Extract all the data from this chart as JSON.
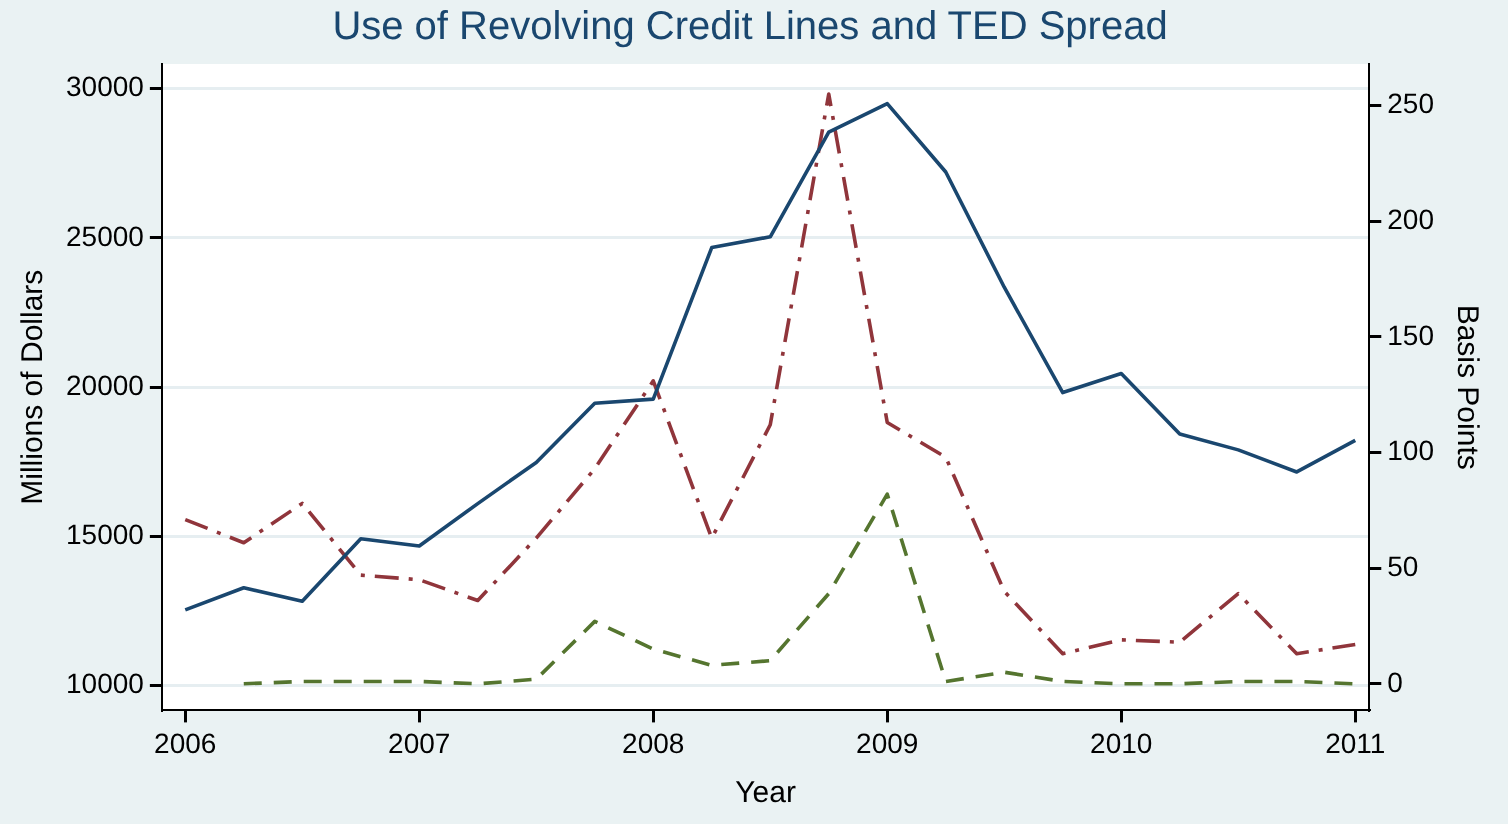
{
  "chart_data": {
    "type": "line",
    "title": "Use of Revolving Credit Lines and TED Spread",
    "xlabel": "Year",
    "ylabel": "Millions of Dollars",
    "y2label": "Basis Points",
    "xlim": [
      2005.9,
      2011.06
    ],
    "xticks": [
      2006,
      2007,
      2008,
      2009,
      2010,
      2011
    ],
    "ylim": [
      9170,
      30830
    ],
    "yticks": [
      10000,
      15000,
      20000,
      25000,
      30000
    ],
    "y2lim": [
      -11.5,
      268
    ],
    "y2ticks": [
      0,
      50,
      100,
      150,
      200,
      250
    ],
    "grid": "y",
    "legend": false,
    "marker": "none",
    "series": [
      {
        "color": "#1a476f",
        "line_style": "solid",
        "x": [
          2006,
          2006.25,
          2006.5,
          2006.75,
          2007,
          2007.25,
          2007.5,
          2007.75,
          2008,
          2008.25,
          2008.5,
          2008.75,
          2009,
          2009.25,
          2009.5,
          2009.75,
          2010,
          2010.25,
          2010.5,
          2010.75,
          2011
        ],
        "values": [
          12540,
          13280,
          12830,
          14920,
          14680,
          16100,
          17480,
          19460,
          19600,
          24680,
          25040,
          28550,
          29500,
          27210,
          23350,
          19820,
          20460,
          18430,
          17900,
          17160,
          18220
        ]
      },
      {
        "color": "#90353b",
        "line_style": "dashdot",
        "axis": "y2",
        "x": [
          2006,
          2006.25,
          2006.5,
          2006.75,
          2007,
          2007.25,
          2007.5,
          2007.75,
          2008,
          2008.25,
          2008.5,
          2008.75,
          2009,
          2009.25,
          2009.5,
          2009.75,
          2010,
          2010.25,
          2010.5,
          2010.75,
          2011
        ],
        "values": [
          71,
          61,
          78,
          47,
          45,
          36,
          63,
          93,
          131,
          63,
          112,
          255,
          113,
          98,
          40,
          13,
          19,
          18,
          39,
          13,
          17
        ]
      },
      {
        "color": "#55752f",
        "line_style": "dashed",
        "axis": "y2",
        "x": [
          2006.25,
          2006.5,
          2006.75,
          2007,
          2007.25,
          2007.5,
          2007.75,
          2008,
          2008.25,
          2008.5,
          2008.75,
          2009,
          2009.25,
          2009.5,
          2009.75,
          2010,
          2010.25,
          2010.5,
          2010.75,
          2011
        ],
        "values": [
          0,
          1,
          1,
          1,
          0,
          2,
          27,
          15,
          8,
          10,
          39,
          82,
          1,
          5,
          1,
          0,
          0,
          1,
          1,
          0
        ]
      }
    ]
  }
}
